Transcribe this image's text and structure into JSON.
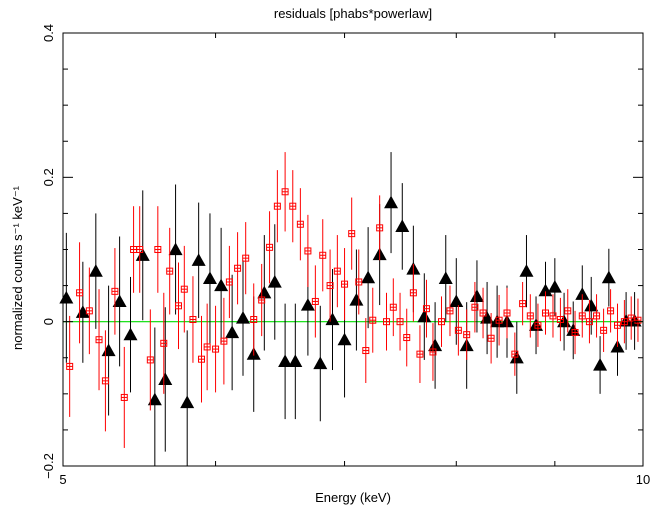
{
  "chart_data": {
    "type": "scatter",
    "title": "residuals [phabs*powerlaw]",
    "xlabel": "Energy (keV)",
    "ylabel": "normalized counts s⁻¹ keV⁻¹",
    "xscale": "log",
    "xlim": [
      5,
      10
    ],
    "ylim": [
      -0.2,
      0.4
    ],
    "x_tick_labels": [
      {
        "value": 5,
        "label": "5"
      },
      {
        "value": 10,
        "label": "10"
      }
    ],
    "x_minor_ticks": [
      6,
      7,
      8,
      9
    ],
    "y_tick_labels": [
      {
        "value": -0.2,
        "label": "−0.2"
      },
      {
        "value": 0,
        "label": "0"
      },
      {
        "value": 0.2,
        "label": "0.2"
      },
      {
        "value": 0.4,
        "label": "0.4"
      }
    ],
    "reference_line": {
      "y": 0,
      "color": "#00dd00"
    },
    "grid": false,
    "series": [
      {
        "marker": "triangle",
        "color": "#000000",
        "x": [
          5.02,
          5.12,
          5.2,
          5.28,
          5.35,
          5.42,
          5.5,
          5.58,
          5.65,
          5.72,
          5.8,
          5.88,
          5.96,
          6.04,
          6.12,
          6.2,
          6.28,
          6.36,
          6.44,
          6.52,
          6.6,
          6.7,
          6.8,
          6.9,
          7.0,
          7.1,
          7.2,
          7.3,
          7.4,
          7.5,
          7.6,
          7.7,
          7.8,
          7.9,
          8.0,
          8.1,
          8.2,
          8.3,
          8.4,
          8.5,
          8.6,
          8.7,
          8.8,
          8.9,
          9.0,
          9.1,
          9.2,
          9.3,
          9.4,
          9.5,
          9.6,
          9.7,
          9.8,
          9.9
        ],
        "y": [
          0.033,
          0.013,
          0.07,
          -0.04,
          0.028,
          -0.018,
          0.092,
          -0.108,
          -0.08,
          0.1,
          -0.112,
          0.085,
          0.06,
          0.05,
          -0.015,
          0.005,
          -0.045,
          0.04,
          0.055,
          -0.055,
          -0.055,
          0.023,
          -0.058,
          0.003,
          -0.025,
          0.03,
          0.061,
          0.093,
          0.165,
          0.132,
          0.073,
          0.007,
          -0.033,
          0.06,
          0.028,
          -0.033,
          0.035,
          0.005,
          0.0,
          0.0,
          -0.05,
          0.07,
          -0.005,
          0.043,
          0.048,
          0.0,
          -0.012,
          0.038,
          0.022,
          -0.06,
          0.061,
          -0.035,
          0.001,
          0.001
        ],
        "err": [
          0.09,
          0.07,
          0.08,
          0.09,
          0.09,
          0.08,
          0.09,
          0.1,
          0.1,
          0.09,
          0.1,
          0.08,
          0.09,
          0.08,
          0.08,
          0.08,
          0.08,
          0.08,
          0.08,
          0.08,
          0.08,
          0.07,
          0.08,
          0.07,
          0.08,
          0.07,
          0.07,
          0.07,
          0.07,
          0.06,
          0.06,
          0.06,
          0.06,
          0.06,
          0.06,
          0.06,
          0.05,
          0.05,
          0.05,
          0.05,
          0.05,
          0.05,
          0.04,
          0.04,
          0.04,
          0.04,
          0.04,
          0.04,
          0.04,
          0.04,
          0.04,
          0.04,
          0.04,
          0.04
        ]
      },
      {
        "marker": "square",
        "color": "#ff0000",
        "x": [
          5.04,
          5.1,
          5.16,
          5.22,
          5.26,
          5.32,
          5.38,
          5.44,
          5.48,
          5.55,
          5.6,
          5.64,
          5.68,
          5.74,
          5.78,
          5.84,
          5.9,
          5.94,
          6.0,
          6.06,
          6.1,
          6.16,
          6.22,
          6.28,
          6.34,
          6.4,
          6.46,
          6.52,
          6.58,
          6.64,
          6.7,
          6.76,
          6.82,
          6.88,
          6.94,
          7.0,
          7.06,
          7.12,
          7.18,
          7.24,
          7.3,
          7.36,
          7.42,
          7.48,
          7.54,
          7.6,
          7.66,
          7.72,
          7.78,
          7.86,
          7.94,
          8.02,
          8.1,
          8.18,
          8.26,
          8.34,
          8.42,
          8.5,
          8.58,
          8.66,
          8.74,
          8.82,
          8.9,
          8.98,
          9.06,
          9.14,
          9.22,
          9.3,
          9.38,
          9.46,
          9.54,
          9.62,
          9.7,
          9.78,
          9.86,
          9.94
        ],
        "y": [
          -0.062,
          0.04,
          0.015,
          -0.025,
          -0.082,
          0.042,
          -0.105,
          0.1,
          0.1,
          -0.053,
          0.1,
          -0.03,
          0.07,
          0.022,
          0.045,
          0.003,
          -0.052,
          -0.035,
          -0.038,
          -0.027,
          0.055,
          0.074,
          0.088,
          0.003,
          0.03,
          0.103,
          0.16,
          0.18,
          0.16,
          0.135,
          0.098,
          0.028,
          0.092,
          0.05,
          0.07,
          0.052,
          0.122,
          0.055,
          -0.04,
          0.002,
          0.13,
          0.0,
          0.02,
          0.0,
          -0.022,
          0.04,
          -0.045,
          0.018,
          -0.042,
          0.0,
          0.015,
          -0.012,
          -0.018,
          0.02,
          0.012,
          -0.023,
          0.002,
          0.012,
          -0.045,
          0.025,
          0.008,
          -0.005,
          0.012,
          0.008,
          0.003,
          0.015,
          -0.015,
          0.008,
          0.0,
          0.008,
          -0.012,
          0.015,
          -0.005,
          0.0,
          0.005,
          0.002
        ],
        "err": [
          0.07,
          0.07,
          0.06,
          0.07,
          0.07,
          0.06,
          0.07,
          0.06,
          0.06,
          0.07,
          0.06,
          0.07,
          0.06,
          0.06,
          0.06,
          0.06,
          0.06,
          0.06,
          0.06,
          0.06,
          0.05,
          0.05,
          0.05,
          0.05,
          0.05,
          0.05,
          0.05,
          0.055,
          0.05,
          0.05,
          0.05,
          0.05,
          0.05,
          0.05,
          0.05,
          0.05,
          0.05,
          0.045,
          0.045,
          0.045,
          0.045,
          0.04,
          0.04,
          0.04,
          0.04,
          0.04,
          0.04,
          0.04,
          0.04,
          0.035,
          0.035,
          0.035,
          0.035,
          0.035,
          0.035,
          0.035,
          0.035,
          0.035,
          0.03,
          0.03,
          0.03,
          0.03,
          0.03,
          0.03,
          0.03,
          0.03,
          0.03,
          0.03,
          0.03,
          0.03,
          0.03,
          0.03,
          0.03,
          0.03,
          0.03,
          0.03
        ]
      }
    ]
  }
}
